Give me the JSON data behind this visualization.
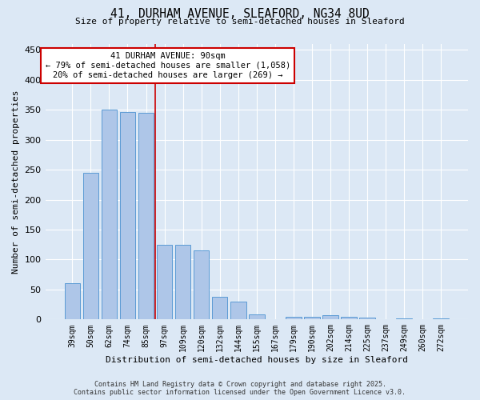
{
  "title_line1": "41, DURHAM AVENUE, SLEAFORD, NG34 8UD",
  "title_line2": "Size of property relative to semi-detached houses in Sleaford",
  "xlabel": "Distribution of semi-detached houses by size in Sleaford",
  "ylabel": "Number of semi-detached properties",
  "categories": [
    "39sqm",
    "50sqm",
    "62sqm",
    "74sqm",
    "85sqm",
    "97sqm",
    "109sqm",
    "120sqm",
    "132sqm",
    "144sqm",
    "155sqm",
    "167sqm",
    "179sqm",
    "190sqm",
    "202sqm",
    "214sqm",
    "225sqm",
    "237sqm",
    "249sqm",
    "260sqm",
    "272sqm"
  ],
  "values": [
    60,
    245,
    350,
    347,
    345,
    125,
    125,
    115,
    38,
    30,
    8,
    0,
    5,
    5,
    7,
    5,
    3,
    0,
    2,
    0,
    2
  ],
  "bar_color": "#aec6e8",
  "bar_edge_color": "#5b9bd5",
  "property_line_idx": 5,
  "annotation_title": "41 DURHAM AVENUE: 90sqm",
  "annotation_line2": "← 79% of semi-detached houses are smaller (1,058)",
  "annotation_line3": "20% of semi-detached houses are larger (269) →",
  "annotation_box_color": "#cc0000",
  "ylim": [
    0,
    460
  ],
  "yticks": [
    0,
    50,
    100,
    150,
    200,
    250,
    300,
    350,
    400,
    450
  ],
  "footer_line1": "Contains HM Land Registry data © Crown copyright and database right 2025.",
  "footer_line2": "Contains public sector information licensed under the Open Government Licence v3.0.",
  "bg_color": "#dce8f5",
  "plot_bg_color": "#dce8f5",
  "grid_color": "#ffffff"
}
